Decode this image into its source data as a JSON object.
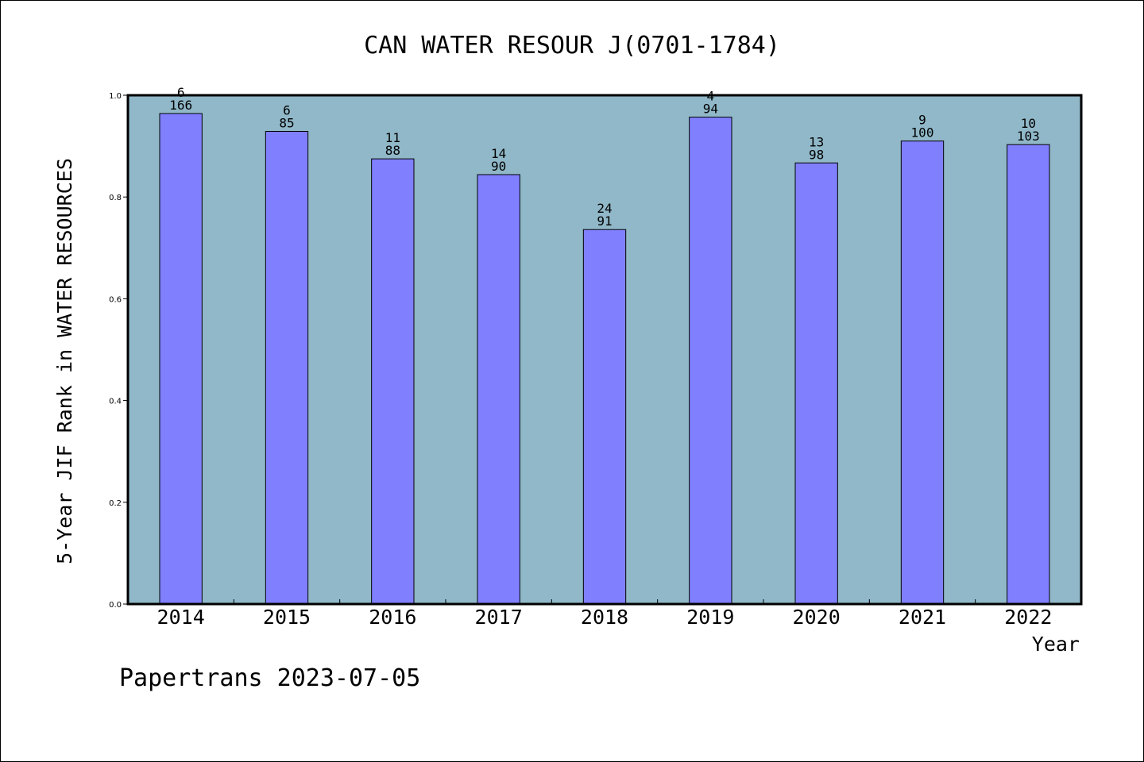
{
  "chart_data": {
    "type": "bar",
    "title": "CAN WATER RESOUR J(0701-1784)",
    "xlabel": "Year",
    "ylabel": "5-Year JIF Rank in WATER RESOURCES",
    "categories": [
      "2014",
      "2015",
      "2016",
      "2017",
      "2018",
      "2019",
      "2020",
      "2021",
      "2022"
    ],
    "values": [
      0.964,
      0.929,
      0.875,
      0.844,
      0.736,
      0.957,
      0.867,
      0.91,
      0.903
    ],
    "rank_labels": [
      "6",
      "6",
      "11",
      "14",
      "24",
      "4",
      "13",
      "9",
      "10"
    ],
    "total_labels": [
      "166",
      "85",
      "88",
      "90",
      "91",
      "94",
      "98",
      "100",
      "103"
    ],
    "ylim": [
      0,
      1.0
    ],
    "yticks": [
      "0.0",
      "0.2",
      "0.4",
      "0.6",
      "0.8",
      "1.0"
    ],
    "grid": false,
    "colors": {
      "plot_background": "#90b8c8",
      "bar_fill": "#8080ff",
      "bar_edge": "#000000"
    }
  },
  "footer": "Papertrans 2023-07-05"
}
